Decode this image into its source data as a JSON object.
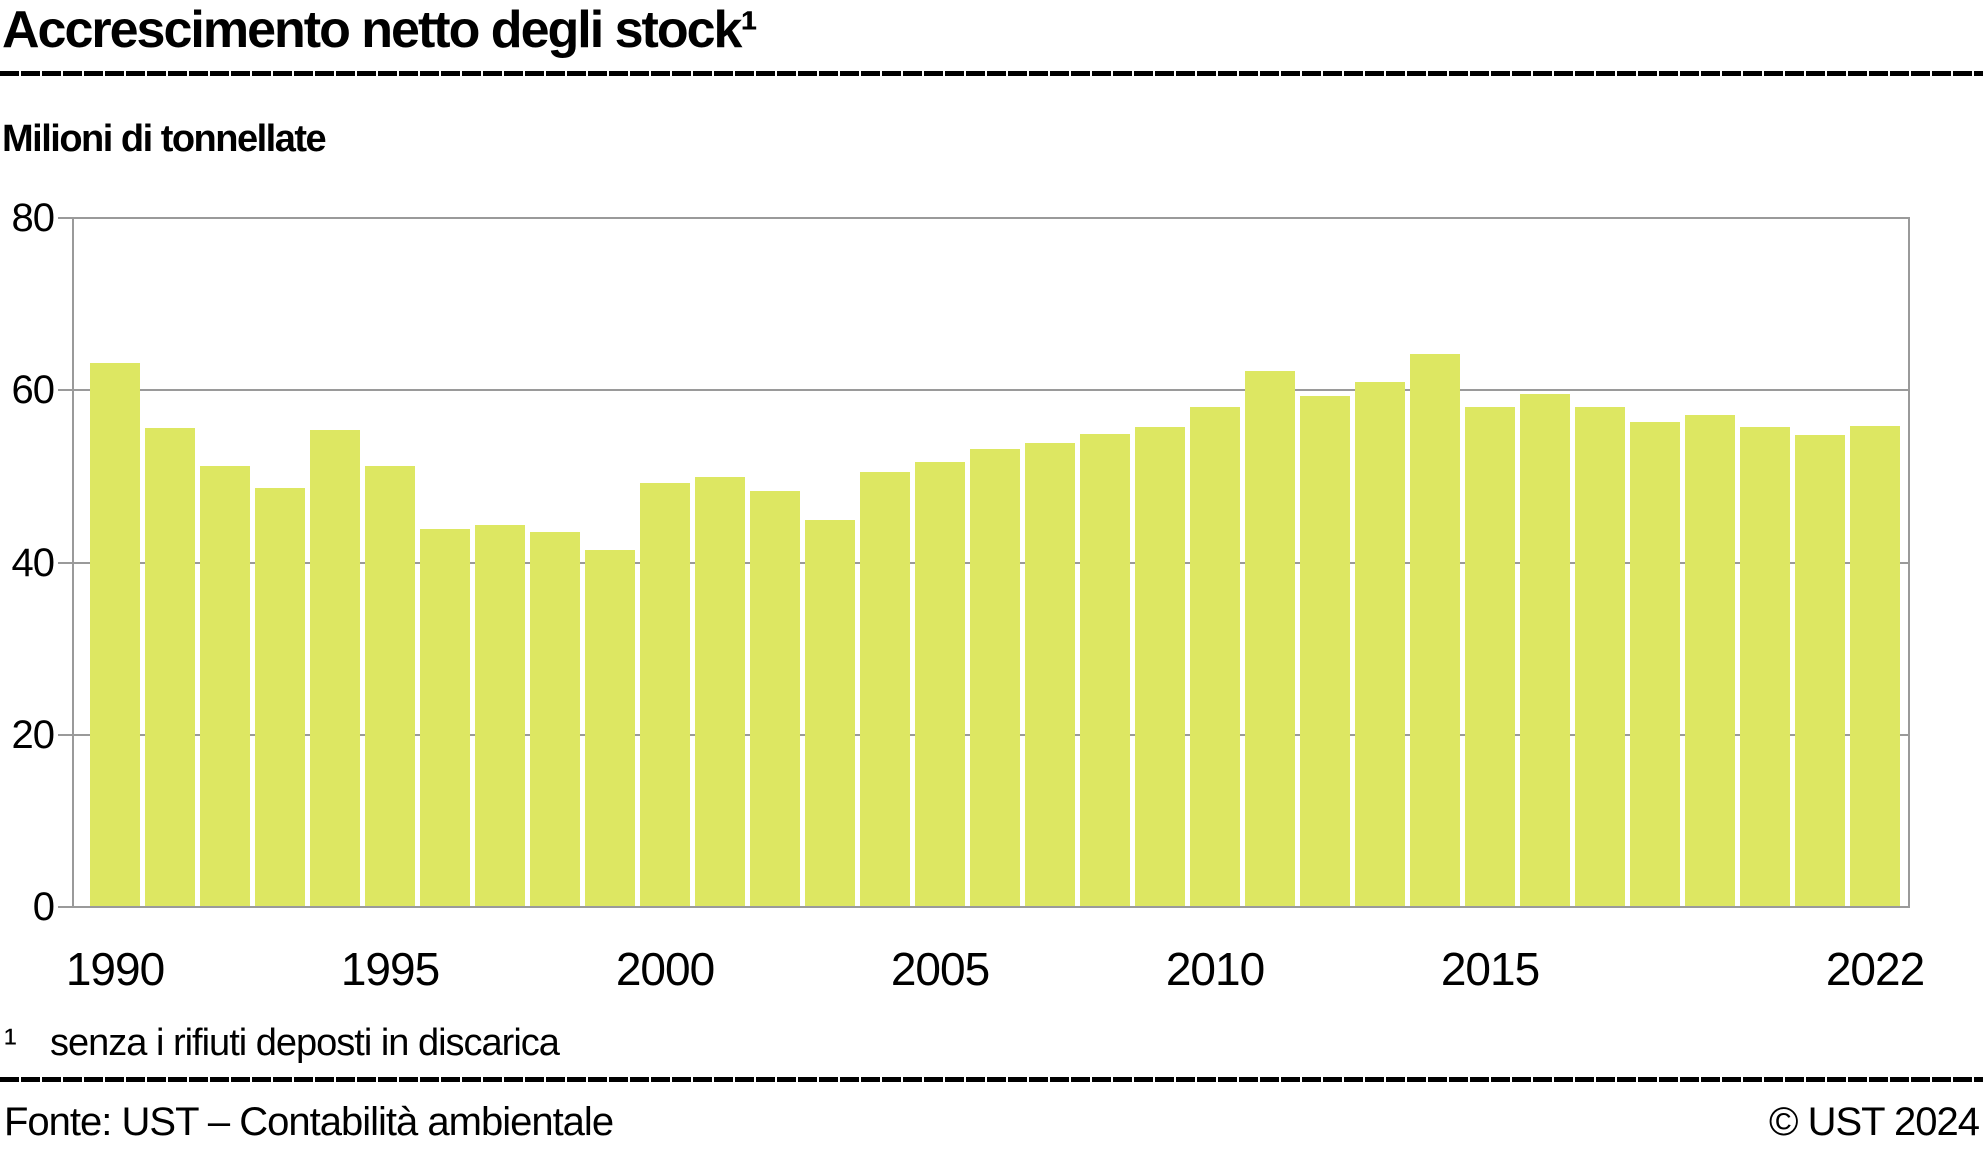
{
  "header": {
    "title": "Accrescimento netto degli stock¹",
    "unit_label": "Milioni di tonnellate"
  },
  "footnote": {
    "marker": "¹",
    "text": "senza i rifiuti deposti in discarica"
  },
  "footer": {
    "source": "Fonte: UST – Contabilità ambientale",
    "copyright": "© UST 2024"
  },
  "colors": {
    "bar": "#dde762",
    "grid": "#9a9a9a",
    "text": "#000000",
    "background": "#ffffff"
  },
  "chart_data": {
    "type": "bar",
    "title": "Accrescimento netto degli stock¹",
    "ylabel": "Milioni di tonnellate",
    "xlabel": "",
    "ylim": [
      0,
      80
    ],
    "yticks": [
      0,
      20,
      40,
      60,
      80
    ],
    "grid": true,
    "legend": "none",
    "x": [
      1990,
      1991,
      1992,
      1993,
      1994,
      1995,
      1996,
      1997,
      1998,
      1999,
      2000,
      2001,
      2002,
      2003,
      2004,
      2005,
      2006,
      2007,
      2008,
      2009,
      2010,
      2011,
      2012,
      2013,
      2014,
      2015,
      2016,
      2017,
      2018,
      2019,
      2020,
      2021,
      2022
    ],
    "values": [
      63.3,
      55.7,
      51.3,
      48.8,
      55.5,
      51.3,
      44.0,
      44.5,
      43.7,
      41.6,
      49.3,
      50.0,
      48.4,
      45.1,
      50.6,
      51.8,
      53.3,
      54.0,
      55.0,
      55.8,
      58.2,
      62.3,
      59.4,
      61.1,
      64.3,
      58.2,
      59.7,
      58.2,
      56.4,
      57.3,
      55.9,
      54.9,
      56.0
    ],
    "xticks": [
      {
        "year": 1990,
        "label": "1990"
      },
      {
        "year": 1995,
        "label": "1995"
      },
      {
        "year": 2000,
        "label": "2000"
      },
      {
        "year": 2005,
        "label": "2005"
      },
      {
        "year": 2010,
        "label": "2010"
      },
      {
        "year": 2015,
        "label": "2015"
      },
      {
        "year": 2022,
        "label": "2022"
      }
    ]
  }
}
